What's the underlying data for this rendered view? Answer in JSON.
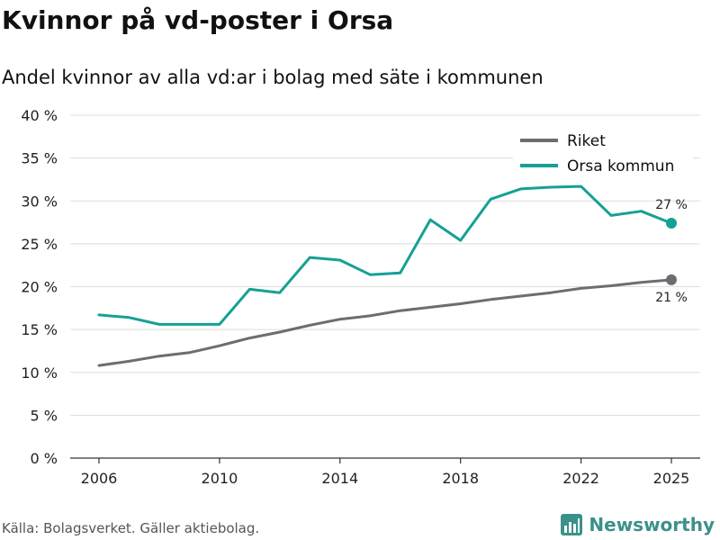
{
  "title": "Kvinnor på vd-poster i Orsa",
  "subtitle": "Andel kvinnor av alla vd:ar i bolag med säte i kommunen",
  "source": "Källa: Bolagsverket. Gäller aktiebolag.",
  "brand": {
    "name": "Newsworthy",
    "icon": "newsworthy-logo-icon",
    "color": "#3a9189"
  },
  "chart_data": {
    "type": "line",
    "title": "Kvinnor på vd-poster i Orsa",
    "subtitle": "Andel kvinnor av alla vd:ar i bolag med säte i kommunen",
    "xlabel": "",
    "ylabel": "",
    "x": [
      2006,
      2007,
      2008,
      2009,
      2010,
      2011,
      2012,
      2013,
      2014,
      2015,
      2016,
      2017,
      2018,
      2019,
      2020,
      2021,
      2022,
      2023,
      2024,
      2025
    ],
    "x_ticks": [
      2006,
      2010,
      2014,
      2018,
      2022,
      2025
    ],
    "x_tick_labels": [
      "2006",
      "2010",
      "2014",
      "2018",
      "2022",
      "2025"
    ],
    "xlim": [
      2006,
      2025
    ],
    "ylim": [
      0,
      40
    ],
    "y_ticks": [
      0,
      5,
      10,
      15,
      20,
      25,
      30,
      35,
      40
    ],
    "y_tick_labels": [
      "0 %",
      "5 %",
      "10 %",
      "15 %",
      "20 %",
      "25 %",
      "30 %",
      "35 %",
      "40 %"
    ],
    "grid": true,
    "legend_position": "top-right",
    "series": [
      {
        "name": "Riket",
        "color": "#6e6c72",
        "values": [
          10.8,
          11.3,
          11.9,
          12.3,
          13.1,
          14.0,
          14.7,
          15.5,
          16.2,
          16.6,
          17.2,
          17.6,
          18.0,
          18.5,
          18.9,
          19.3,
          19.8,
          20.1,
          20.5,
          20.8
        ],
        "end_label": "21 %"
      },
      {
        "name": "Orsa kommun",
        "color": "#16a095",
        "values": [
          16.7,
          16.4,
          15.6,
          15.6,
          15.6,
          19.7,
          19.3,
          23.4,
          23.1,
          21.4,
          21.6,
          27.8,
          25.4,
          30.2,
          31.4,
          31.6,
          31.7,
          28.3,
          28.8,
          27.4
        ],
        "end_label": "27 %"
      }
    ]
  }
}
